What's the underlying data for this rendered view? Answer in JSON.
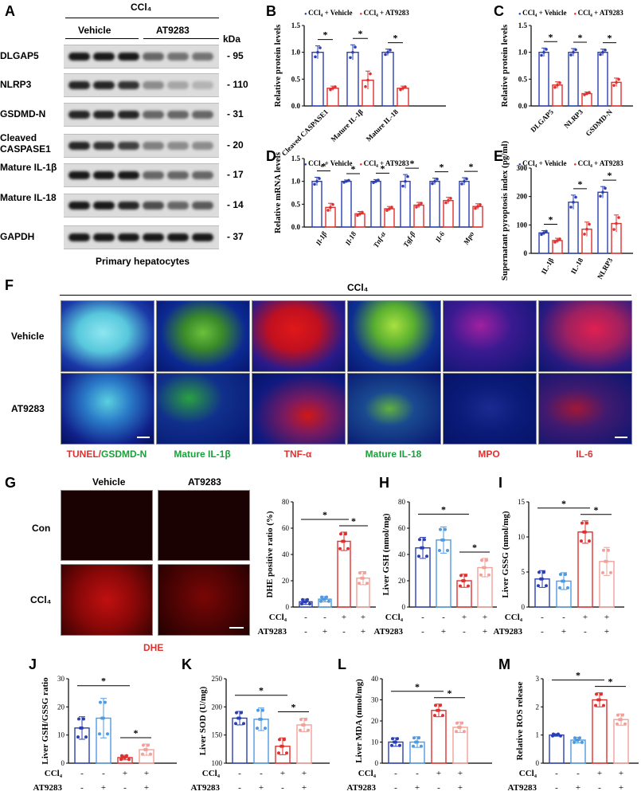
{
  "panel_letters": {
    "A": "A",
    "B": "B",
    "C": "C",
    "D": "D",
    "E": "E",
    "F": "F",
    "G": "G",
    "H": "H",
    "I": "I",
    "J": "J",
    "K": "K",
    "L": "L",
    "M": "M"
  },
  "blot": {
    "ccl4": "CCl₄",
    "vehicle": "Vehicle",
    "at9283": "AT9283",
    "kda": "kDa",
    "rows": [
      {
        "name": "DLGAP5",
        "kda": "95"
      },
      {
        "name": "NLRP3",
        "kda": "110"
      },
      {
        "name": "GSDMD-N",
        "kda": "31"
      },
      {
        "name": "Cleaved CASPASE1",
        "kda": "20"
      },
      {
        "name": "Mature IL-1β",
        "kda": "17"
      },
      {
        "name": "Mature IL-18",
        "kda": "14"
      },
      {
        "name": "GAPDH",
        "kda": "37"
      }
    ],
    "caption": "Primary hepatocytes"
  },
  "legend": {
    "vehicle": "CCl₄ + Vehicle",
    "at9283": "CCl₄ + AT9283"
  },
  "colors": {
    "blue": "#2b3fb3",
    "red": "#e0312f",
    "lightblue": "#4f9ae0",
    "pink": "#f2a09a"
  },
  "panelF": {
    "ccl4": "CCl₄",
    "rows": [
      "Vehicle",
      "AT9283"
    ],
    "cols": [
      {
        "label": "TUNEL/GSDMD-N"
      },
      {
        "label": "Mature IL-1β"
      },
      {
        "label": "TNF-α"
      },
      {
        "label": "Mature IL-18"
      },
      {
        "label": "MPO"
      },
      {
        "label": "IL-6"
      }
    ]
  },
  "panelG": {
    "cols": [
      "Vehicle",
      "AT9283"
    ],
    "rows": [
      "Con",
      "CCl₄"
    ],
    "stain": "DHE"
  },
  "rows_labels": {
    "ccl4": "CCl₄",
    "at9283": "AT9283",
    "ccl4_signs": [
      "-",
      "-",
      "+",
      "+"
    ],
    "at_signs": [
      "-",
      "+",
      "-",
      "+"
    ]
  },
  "chart_data": [
    {
      "id": "B",
      "type": "bar",
      "ylabel": "Relative protein levels",
      "ylim": [
        0,
        1.5
      ],
      "yticks": [
        "0.0",
        "0.5",
        "1.0",
        "1.5"
      ],
      "categories": [
        "Cleaved CASPASE1",
        "Mature IL-1β",
        "Mature IL-18"
      ],
      "series": [
        {
          "name": "CCl₄ + Vehicle",
          "values": [
            1.0,
            1.0,
            1.0
          ],
          "err": [
            0.12,
            0.14,
            0.06
          ]
        },
        {
          "name": "CCl₄ + AT9283",
          "values": [
            0.33,
            0.48,
            0.33
          ],
          "err": [
            0.04,
            0.17,
            0.04
          ]
        }
      ],
      "sig": [
        "*",
        "*",
        "*"
      ]
    },
    {
      "id": "C",
      "type": "bar",
      "ylabel": "Relative protein levels",
      "ylim": [
        0,
        1.5
      ],
      "yticks": [
        "0.0",
        "0.5",
        "1.0",
        "1.5"
      ],
      "categories": [
        "DLGAP5",
        "NLRP3",
        "GSDMD-N"
      ],
      "series": [
        {
          "name": "CCl₄ + Vehicle",
          "values": [
            1.0,
            1.0,
            1.0
          ],
          "err": [
            0.08,
            0.07,
            0.06
          ]
        },
        {
          "name": "CCl₄ + AT9283",
          "values": [
            0.39,
            0.23,
            0.44
          ],
          "err": [
            0.06,
            0.03,
            0.08
          ]
        }
      ],
      "sig": [
        "*",
        "*",
        "*"
      ]
    },
    {
      "id": "D",
      "type": "bar",
      "ylabel": "Relative mRNA levels",
      "ylim": [
        0,
        1.5
      ],
      "yticks": [
        "0.0",
        "0.5",
        "1.0",
        "1.5"
      ],
      "categories": [
        "Il-1β",
        "Il-18",
        "Tnf-α",
        "Tgf-β",
        "Il-6",
        "Mpo"
      ],
      "series": [
        {
          "name": "CCl₄ + Vehicle",
          "values": [
            1.0,
            1.0,
            1.0,
            1.0,
            1.0,
            1.0
          ],
          "err": [
            0.09,
            0.03,
            0.04,
            0.15,
            0.07,
            0.08
          ]
        },
        {
          "name": "CCl₄ + AT9283",
          "values": [
            0.43,
            0.29,
            0.4,
            0.48,
            0.58,
            0.45
          ],
          "err": [
            0.09,
            0.05,
            0.05,
            0.06,
            0.07,
            0.06
          ]
        }
      ],
      "sig": [
        "*",
        "*",
        "*",
        "*",
        "*",
        "*"
      ]
    },
    {
      "id": "E",
      "type": "bar",
      "ylabel": "Supernatant pyroptosis index (pg/ml)",
      "ylim": [
        0,
        300
      ],
      "yticks": [
        "0",
        "100",
        "200",
        "300"
      ],
      "categories": [
        "IL-1β",
        "IL-18",
        "NLRP3"
      ],
      "series": [
        {
          "name": "CCl₄ + Vehicle",
          "values": [
            72,
            180,
            215
          ],
          "err": [
            8,
            25,
            20
          ]
        },
        {
          "name": "CCl₄ + AT9283",
          "values": [
            45,
            85,
            105
          ],
          "err": [
            8,
            25,
            30
          ]
        }
      ],
      "sig": [
        "*",
        "*",
        "*"
      ]
    },
    {
      "id": "G2",
      "type": "bar",
      "ylabel": "DHE positive ratio (%)",
      "ylim": [
        0,
        80
      ],
      "yticks": [
        "0",
        "20",
        "40",
        "60",
        "80"
      ],
      "values": [
        4,
        6,
        50,
        22
      ],
      "err": [
        2,
        2,
        7,
        5
      ],
      "sig": [
        {
          "from": 0,
          "to": 2,
          "label": "*"
        },
        {
          "from": 2,
          "to": 3,
          "label": "*"
        }
      ]
    },
    {
      "id": "H",
      "type": "bar",
      "ylabel": "Liver GSH (nmol/mg)",
      "ylim": [
        0,
        80
      ],
      "yticks": [
        "0",
        "20",
        "40",
        "60",
        "80"
      ],
      "values": [
        45,
        51,
        20,
        30
      ],
      "err": [
        8,
        10,
        5,
        7
      ],
      "sig": [
        {
          "from": 0,
          "to": 2,
          "label": "*"
        },
        {
          "from": 2,
          "to": 3,
          "label": "*"
        }
      ]
    },
    {
      "id": "I",
      "type": "bar",
      "ylabel": "Liver GSSG (nmol/mg)",
      "ylim": [
        0,
        15
      ],
      "yticks": [
        "0",
        "5",
        "10",
        "15"
      ],
      "values": [
        4,
        3.7,
        10.7,
        6.5
      ],
      "err": [
        1.2,
        1.2,
        1.6,
        2
      ],
      "sig": [
        {
          "from": 0,
          "to": 2,
          "label": "*"
        },
        {
          "from": 2,
          "to": 3,
          "label": "*"
        }
      ]
    },
    {
      "id": "J",
      "type": "bar",
      "ylabel": "Liver GSH/GSSG ratio",
      "ylim": [
        0,
        30
      ],
      "yticks": [
        "0",
        "10",
        "20",
        "30"
      ],
      "values": [
        12.5,
        16,
        2,
        4.8
      ],
      "err": [
        4,
        7,
        0.8,
        2
      ],
      "sig": [
        {
          "from": 0,
          "to": 2,
          "label": "*"
        },
        {
          "from": 2,
          "to": 3,
          "label": "*"
        }
      ]
    },
    {
      "id": "K",
      "type": "bar",
      "ylabel": "Liver SOD (U/mg)",
      "ylim": [
        100,
        250
      ],
      "yticks": [
        "100",
        "150",
        "200",
        "250"
      ],
      "values": [
        180,
        178,
        130,
        168
      ],
      "err": [
        12,
        20,
        15,
        12
      ],
      "sig": [
        {
          "from": 0,
          "to": 2,
          "label": "*"
        },
        {
          "from": 2,
          "to": 3,
          "label": "*"
        }
      ]
    },
    {
      "id": "L",
      "type": "bar",
      "ylabel": "Liver MDA (nmol/mg)",
      "ylim": [
        0,
        40
      ],
      "yticks": [
        "0",
        "10",
        "20",
        "30",
        "40"
      ],
      "values": [
        10,
        10,
        25,
        17
      ],
      "err": [
        2,
        2.5,
        3,
        2.5
      ],
      "sig": [
        {
          "from": 0,
          "to": 2,
          "label": "*"
        },
        {
          "from": 2,
          "to": 3,
          "label": "*"
        }
      ]
    },
    {
      "id": "M",
      "type": "bar",
      "ylabel": "Relative ROS release",
      "ylim": [
        0,
        3
      ],
      "yticks": [
        "0",
        "1",
        "2",
        "3"
      ],
      "values": [
        1.0,
        0.82,
        2.25,
        1.55
      ],
      "err": [
        0.04,
        0.1,
        0.25,
        0.2
      ],
      "sig": [
        {
          "from": 0,
          "to": 2,
          "label": "*"
        },
        {
          "from": 2,
          "to": 3,
          "label": "*"
        }
      ]
    }
  ]
}
